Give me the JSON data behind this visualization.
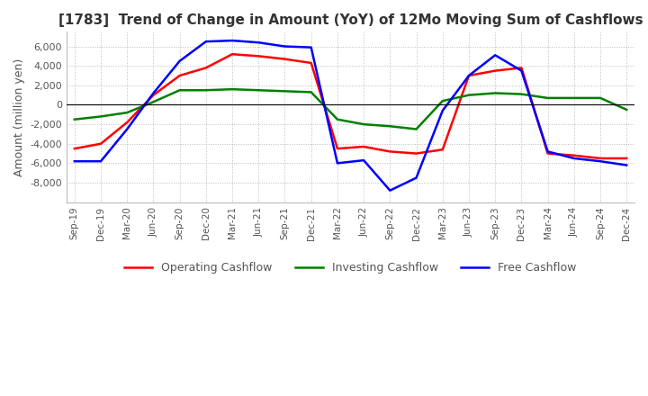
{
  "title": "[1783]  Trend of Change in Amount (YoY) of 12Mo Moving Sum of Cashflows",
  "ylabel": "Amount (million yen)",
  "x_labels": [
    "Sep-19",
    "Dec-19",
    "Mar-20",
    "Jun-20",
    "Sep-20",
    "Dec-20",
    "Mar-21",
    "Jun-21",
    "Sep-21",
    "Dec-21",
    "Mar-22",
    "Jun-22",
    "Sep-22",
    "Dec-22",
    "Mar-23",
    "Jun-23",
    "Sep-23",
    "Dec-23",
    "Mar-24",
    "Jun-24",
    "Sep-24",
    "Dec-24"
  ],
  "operating": [
    -4500,
    -4000,
    -1800,
    1000,
    3000,
    3800,
    5200,
    5000,
    4700,
    4300,
    -4500,
    -4300,
    -4800,
    -5000,
    -4600,
    3000,
    3500,
    3800,
    -5000,
    -5200,
    -5500,
    -5500
  ],
  "investing": [
    -1500,
    -1200,
    -800,
    300,
    1500,
    1500,
    1600,
    1500,
    1400,
    1300,
    -1500,
    -2000,
    -2200,
    -2500,
    400,
    1000,
    1200,
    1100,
    700,
    700,
    700,
    -500
  ],
  "free": [
    -5800,
    -5800,
    -2500,
    1200,
    4500,
    6500,
    6600,
    6400,
    6000,
    5900,
    -6000,
    -5700,
    -8800,
    -7500,
    -600,
    3000,
    5100,
    3500,
    -4800,
    -5500,
    -5800,
    -6200
  ],
  "op_color": "#ff0000",
  "inv_color": "#008000",
  "free_color": "#0000ff",
  "ylim": [
    -10000,
    7500
  ],
  "yticks": [
    -8000,
    -6000,
    -4000,
    -2000,
    0,
    2000,
    4000,
    6000
  ],
  "legend_labels": [
    "Operating Cashflow",
    "Investing Cashflow",
    "Free Cashflow"
  ],
  "background_color": "#ffffff",
  "grid_color": "#bbbbbb"
}
